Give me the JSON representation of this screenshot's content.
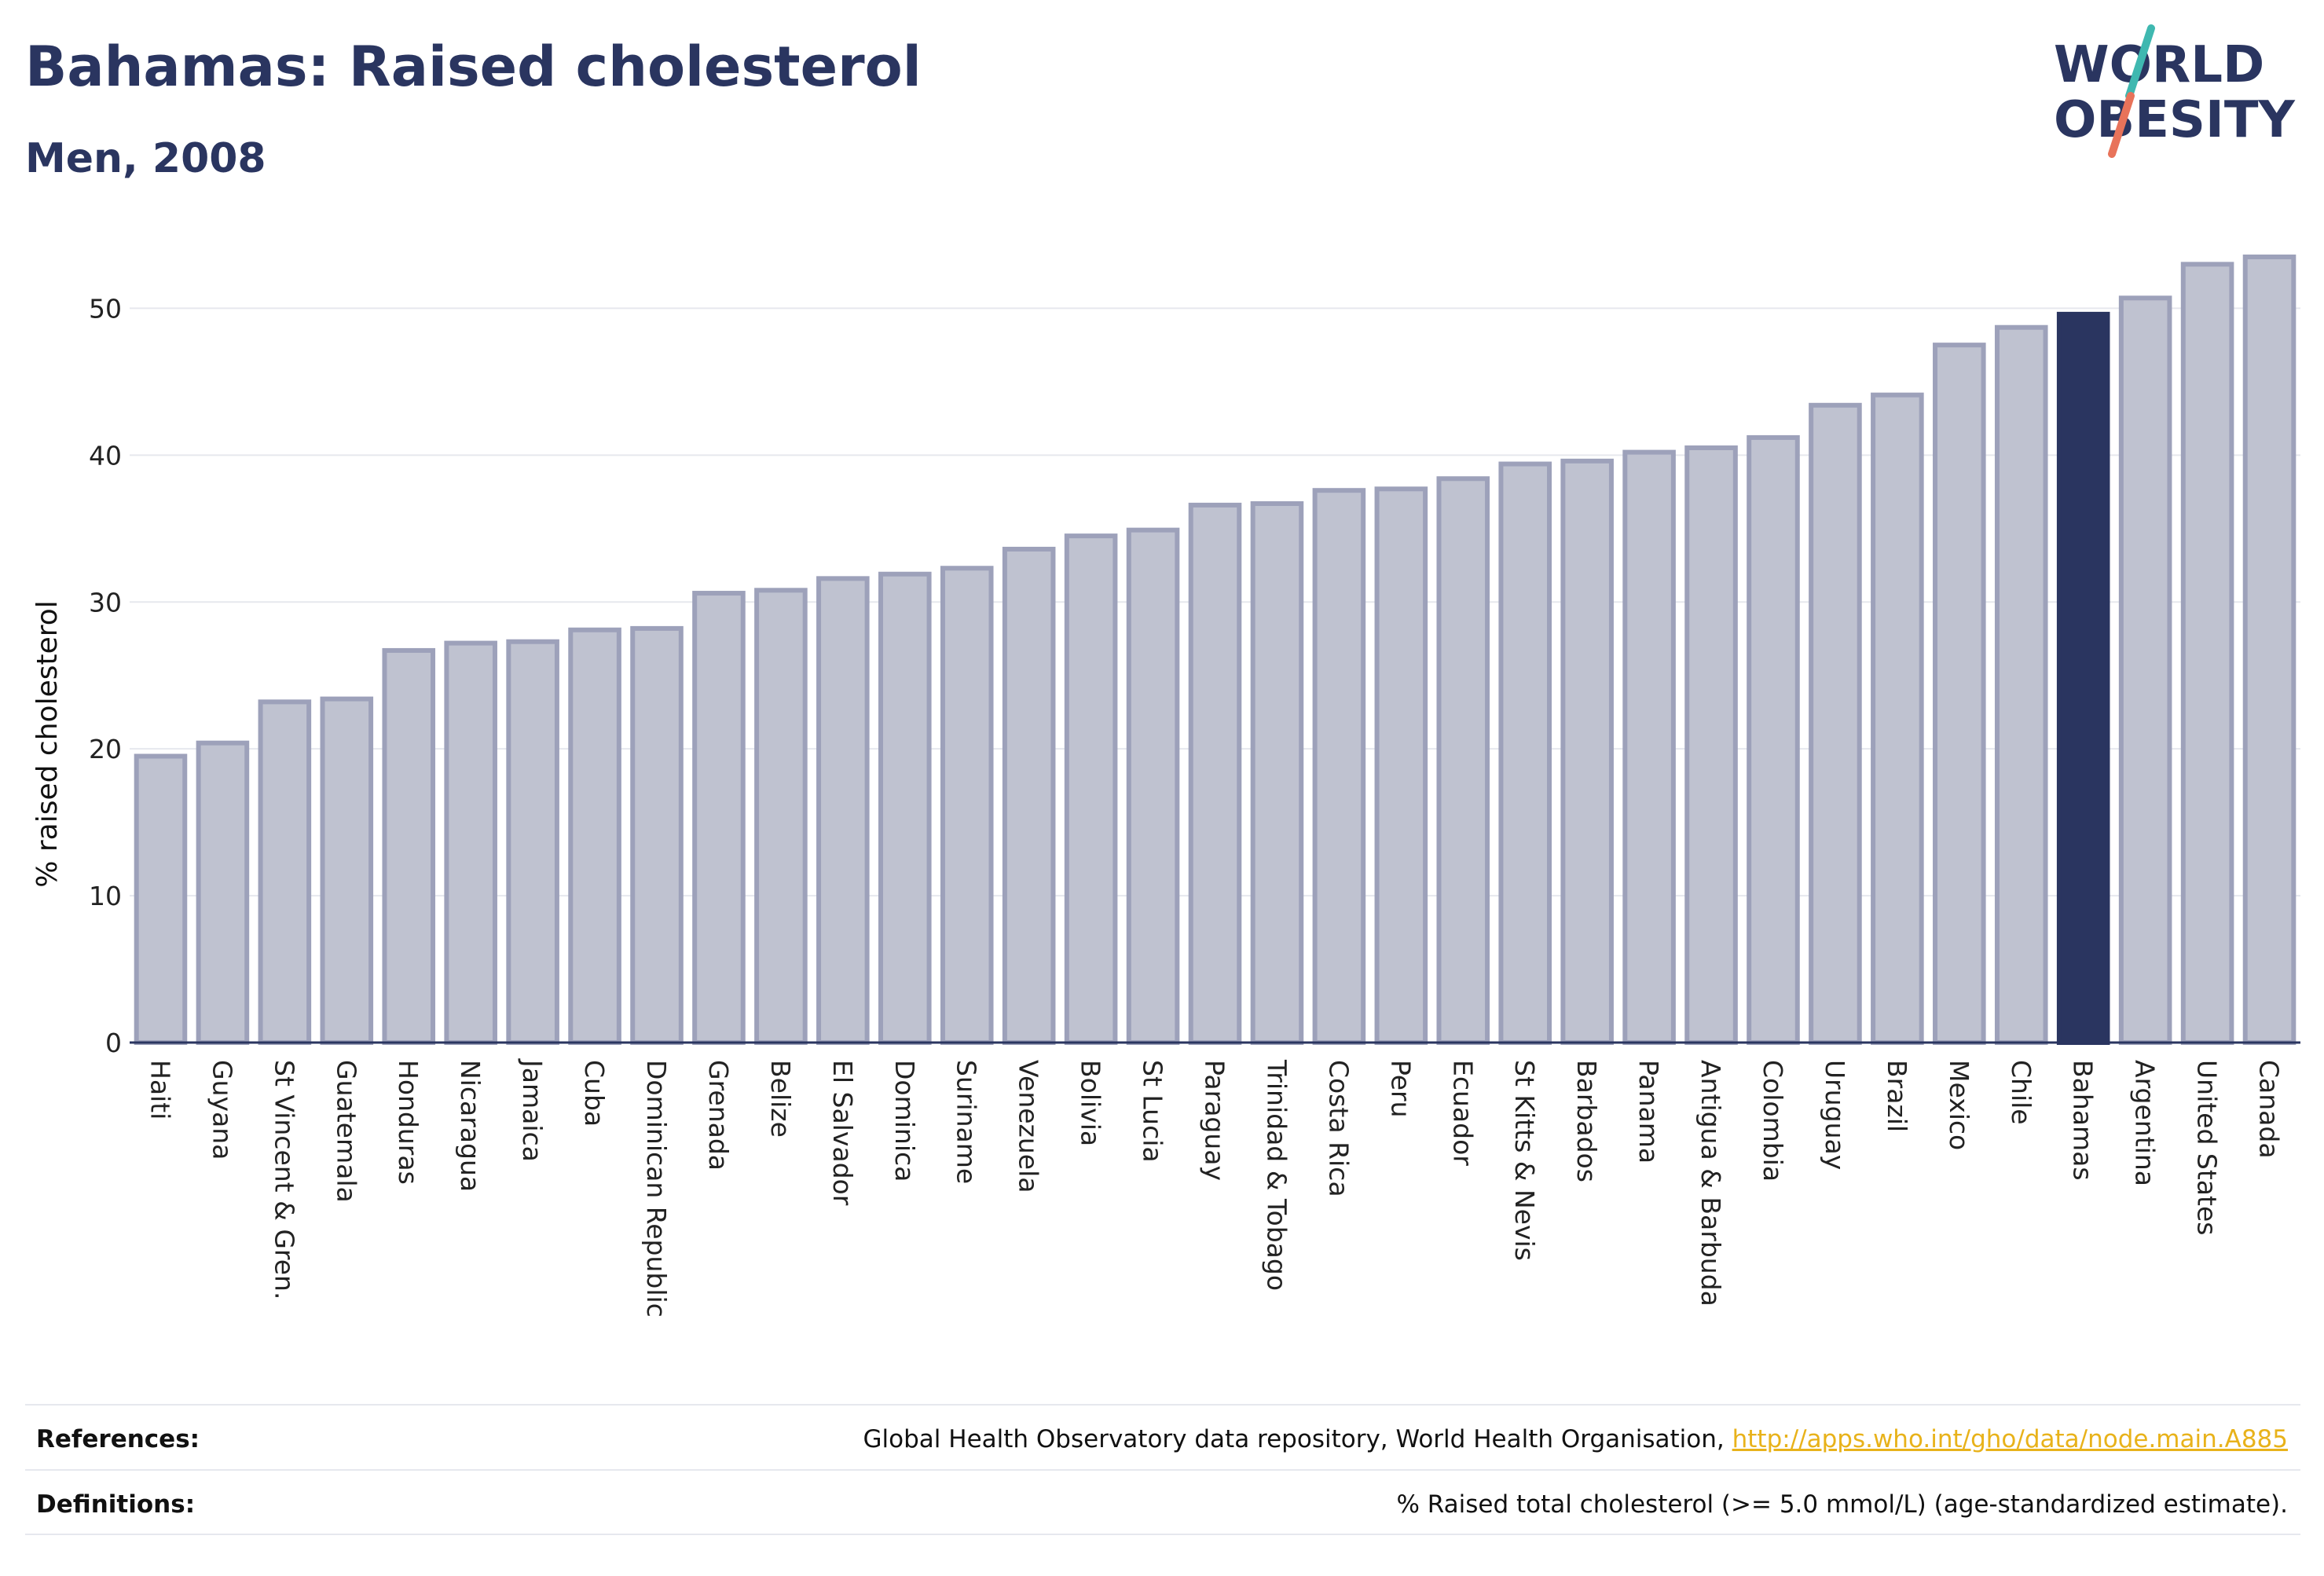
{
  "header": {
    "title": "Bahamas: Raised cholesterol",
    "subtitle": "Men, 2008"
  },
  "logo": {
    "line1": "WORLD",
    "line2": "OBESITY",
    "accent_teal": "#3fb8b0",
    "accent_coral": "#e8735a",
    "text_color": "#2a3560"
  },
  "footer": {
    "references_label": "References:",
    "references_text": "Global Health Observatory data repository, World Health Organisation, ",
    "references_link": "http://apps.who.int/gho/data/node.main.A885",
    "definitions_label": "Definitions:",
    "definitions_text": "% Raised total cholesterol (>= 5.0 mmol/L) (age-standardized estimate)."
  },
  "colors": {
    "bar_default": "#bfc2d0",
    "bar_default_stroke": "#9da1ba",
    "bar_highlight": "#2a3560",
    "grid": "#e6e8ee"
  },
  "chart_data": {
    "type": "bar",
    "ylabel": "% raised cholesterol",
    "ylim": [
      0,
      53.5
    ],
    "yticks": [
      0,
      10,
      20,
      30,
      40,
      50
    ],
    "grid": true,
    "highlight": "Bahamas",
    "categories": [
      "Haiti",
      "Guyana",
      "St Vincent & Gren.",
      "Guatemala",
      "Honduras",
      "Nicaragua",
      "Jamaica",
      "Cuba",
      "Dominican Republic",
      "Grenada",
      "Belize",
      "El Salvador",
      "Dominica",
      "Suriname",
      "Venezuela",
      "Bolivia",
      "St Lucia",
      "Paraguay",
      "Trinidad & Tobago",
      "Costa Rica",
      "Peru",
      "Ecuador",
      "St Kitts & Nevis",
      "Barbados",
      "Panama",
      "Antigua & Barbuda",
      "Colombia",
      "Uruguay",
      "Brazil",
      "Mexico",
      "Chile",
      "Bahamas",
      "Argentina",
      "United States",
      "Canada"
    ],
    "values": [
      19.5,
      20.4,
      23.2,
      23.4,
      26.7,
      27.2,
      27.3,
      28.1,
      28.2,
      30.6,
      30.8,
      31.6,
      31.9,
      32.3,
      33.6,
      34.5,
      34.9,
      36.6,
      36.7,
      37.6,
      37.7,
      38.4,
      39.4,
      39.6,
      40.2,
      40.5,
      41.2,
      43.4,
      44.1,
      47.5,
      48.7,
      49.6,
      50.7,
      53.0,
      53.5
    ]
  }
}
